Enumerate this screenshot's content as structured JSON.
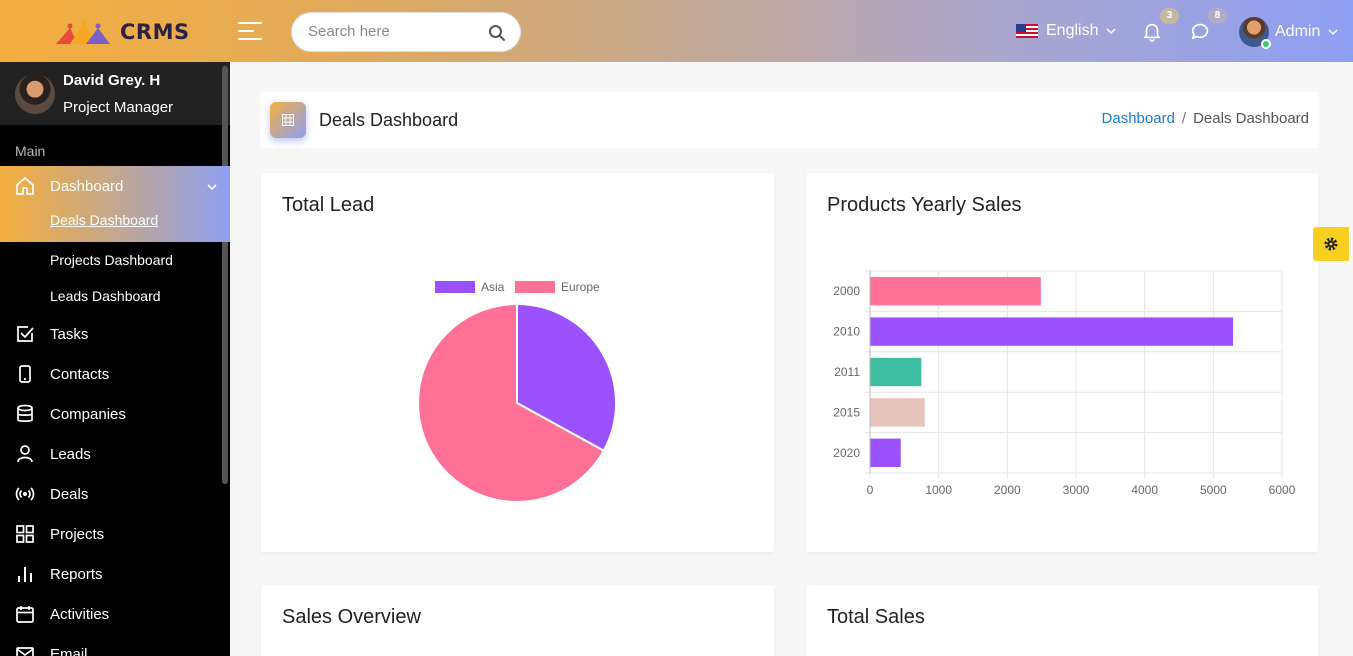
{
  "header": {
    "logo_text": "CRMS",
    "search_placeholder": "Search here",
    "language": "English",
    "notifications_count": "3",
    "messages_count": "8",
    "user_name": "Admin"
  },
  "sidebar": {
    "profile_name": "David Grey. H",
    "profile_role": "Project Manager",
    "section_label": "Main",
    "items": [
      {
        "label": "Dashboard",
        "icon": "home-icon"
      },
      {
        "label": "Tasks",
        "icon": "checkbox-icon"
      },
      {
        "label": "Contacts",
        "icon": "phone-icon"
      },
      {
        "label": "Companies",
        "icon": "database-icon"
      },
      {
        "label": "Leads",
        "icon": "user-icon"
      },
      {
        "label": "Deals",
        "icon": "broadcast-icon"
      },
      {
        "label": "Projects",
        "icon": "grid-icon"
      },
      {
        "label": "Reports",
        "icon": "bar-chart-icon"
      },
      {
        "label": "Activities",
        "icon": "calendar-icon"
      },
      {
        "label": "Email",
        "icon": "mail-icon"
      }
    ],
    "sub_items": [
      "Deals Dashboard",
      "Projects Dashboard",
      "Leads Dashboard"
    ]
  },
  "page": {
    "title": "Deals Dashboard",
    "breadcrumb_root": "Dashboard",
    "breadcrumb_sep": "/",
    "breadcrumb_current": "Deals Dashboard"
  },
  "cards": {
    "lead_title": "Total Lead",
    "sales_title": "Products Yearly Sales",
    "overview_title": "Sales Overview",
    "total_title": "Total Sales"
  },
  "colors": {
    "accent_orange": "#f4ae3f",
    "accent_blue": "#8e9ff3",
    "purple": "#9b51fd",
    "pink": "#ff7096",
    "teal": "#3dbc9f",
    "beige": "#e6c4bb",
    "link": "#1a7ad6"
  },
  "chart_data": [
    {
      "type": "pie",
      "title": "",
      "labels": [
        "Asia",
        "Europe"
      ],
      "values": [
        33,
        67
      ],
      "colors": [
        "#9b51fd",
        "#ff7096"
      ],
      "legend": "top"
    },
    {
      "type": "bar",
      "orientation": "horizontal",
      "title": "",
      "categories": [
        "2000",
        "2010",
        "2011",
        "2015",
        "2020"
      ],
      "values": [
        2480,
        5280,
        740,
        790,
        440
      ],
      "colors": [
        "#ff7096",
        "#9b51fd",
        "#3dbc9f",
        "#e6c4bb",
        "#9b51fd"
      ],
      "xlim": [
        0,
        6000
      ],
      "xticks": [
        "0",
        "1000",
        "2000",
        "3000",
        "4000",
        "5000",
        "6000"
      ],
      "grid": true
    }
  ]
}
